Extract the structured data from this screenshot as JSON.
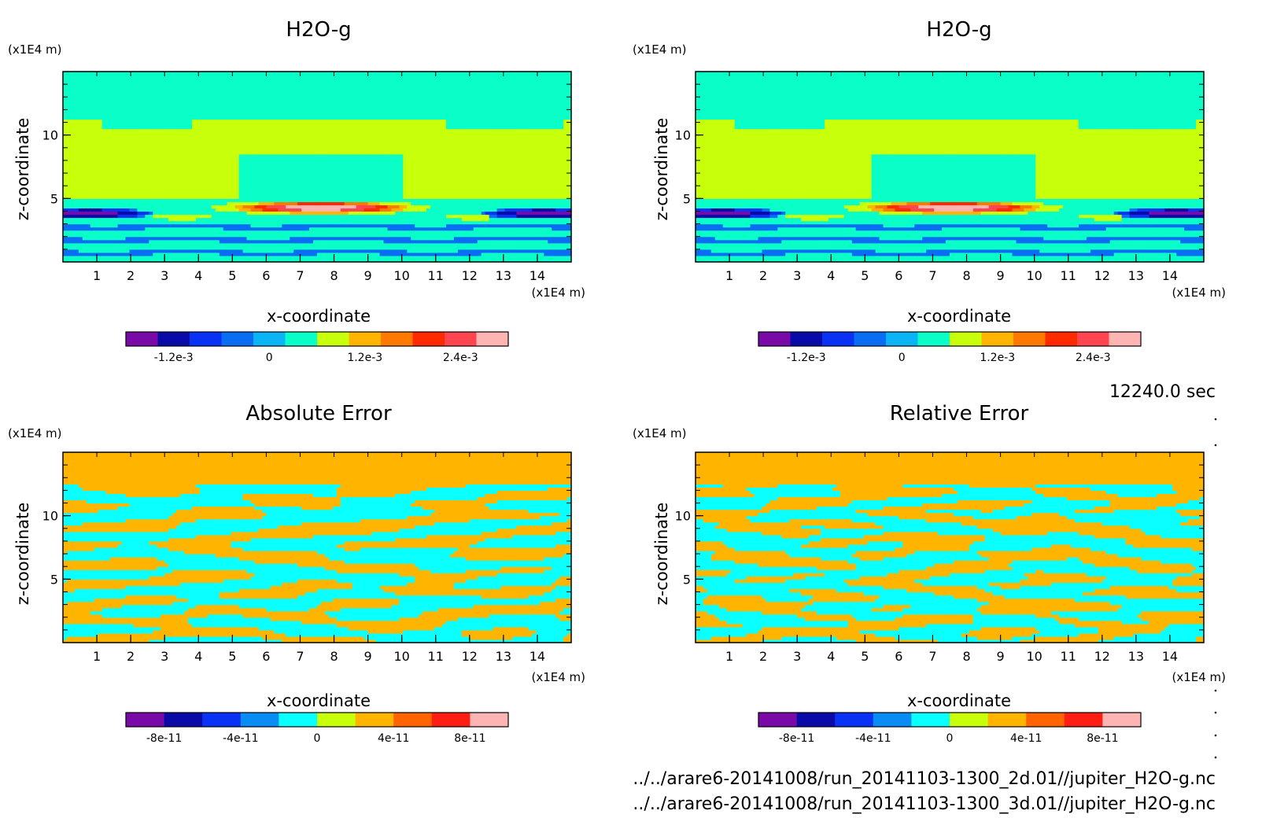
{
  "time_label": "12240.0 sec",
  "files": [
    "../../arare6-20141008/run_20141103-1300_2d.01//jupiter_H2O-g.nc",
    "../../arare6-20141008/run_20141103-1300_3d.01//jupiter_H2O-g.nc"
  ],
  "colors": {
    "h2o_levels": [
      "#7a0aa8",
      "#0a0aa8",
      "#0a32f5",
      "#0a6ef5",
      "#0ab4f5",
      "#0affc8",
      "#c8ff0a",
      "#ffb400",
      "#ff7800",
      "#ff2a00",
      "#ff4650",
      "#ffb4b4"
    ],
    "err_levels": [
      "#7a0aa8",
      "#0a0aa8",
      "#0a32f5",
      "#0a8cf5",
      "#0affff",
      "#c8ff0a",
      "#ffb400",
      "#ff6400",
      "#ff1e14",
      "#ffb4b4"
    ]
  },
  "chart_data": [
    {
      "type": "heatmap",
      "title": "H2O-g",
      "xlabel": "x-coordinate",
      "ylabel": "z-coordinate",
      "x_unit": "(x1E4 m)",
      "y_unit": "(x1E4 m)",
      "xlim": [
        0,
        15
      ],
      "ylim": [
        0,
        15
      ],
      "xticks": [
        "1",
        "2",
        "3",
        "4",
        "5",
        "6",
        "7",
        "8",
        "9",
        "10",
        "11",
        "12",
        "13",
        "14"
      ],
      "yticks": [
        "5",
        "10"
      ],
      "colorbar": {
        "ticks": [
          "-1.2e-3",
          "0",
          "1.2e-3",
          "2.4e-3"
        ],
        "range": [
          -0.0018,
          0.003
        ],
        "levels": 12
      },
      "field": "moisture"
    },
    {
      "type": "heatmap",
      "title": "H2O-g",
      "xlabel": "x-coordinate",
      "ylabel": "z-coordinate",
      "x_unit": "(x1E4 m)",
      "y_unit": "(x1E4 m)",
      "xlim": [
        0,
        15
      ],
      "ylim": [
        0,
        15
      ],
      "xticks": [
        "1",
        "2",
        "3",
        "4",
        "5",
        "6",
        "7",
        "8",
        "9",
        "10",
        "11",
        "12",
        "13",
        "14"
      ],
      "yticks": [
        "5",
        "10"
      ],
      "colorbar": {
        "ticks": [
          "-1.2e-3",
          "0",
          "1.2e-3",
          "2.4e-3"
        ],
        "range": [
          -0.0018,
          0.003
        ],
        "levels": 12
      },
      "field": "moisture"
    },
    {
      "type": "heatmap",
      "title": "Absolute Error",
      "xlabel": "x-coordinate",
      "ylabel": "z-coordinate",
      "x_unit": "(x1E4 m)",
      "y_unit": "(x1E4 m)",
      "xlim": [
        0,
        15
      ],
      "ylim": [
        0,
        15
      ],
      "xticks": [
        "1",
        "2",
        "3",
        "4",
        "5",
        "6",
        "7",
        "8",
        "9",
        "10",
        "11",
        "12",
        "13",
        "14"
      ],
      "yticks": [
        "5",
        "10"
      ],
      "colorbar": {
        "ticks": [
          "-8e-11",
          "-4e-11",
          "0",
          "4e-11",
          "8e-11"
        ],
        "range": [
          -1e-10,
          1e-10
        ],
        "levels": 10
      },
      "field": "noise"
    },
    {
      "type": "heatmap",
      "title": "Relative Error",
      "xlabel": "x-coordinate",
      "ylabel": "z-coordinate",
      "x_unit": "(x1E4 m)",
      "y_unit": "(x1E4 m)",
      "xlim": [
        0,
        15
      ],
      "ylim": [
        0,
        15
      ],
      "xticks": [
        "1",
        "2",
        "3",
        "4",
        "5",
        "6",
        "7",
        "8",
        "9",
        "10",
        "11",
        "12",
        "13",
        "14"
      ],
      "yticks": [
        "5",
        "10"
      ],
      "colorbar": {
        "ticks": [
          "-8e-11",
          "-4e-11",
          "0",
          "4e-11",
          "8e-11"
        ],
        "range": [
          -1e-10,
          1e-10
        ],
        "levels": 10
      },
      "field": "noise2"
    }
  ]
}
